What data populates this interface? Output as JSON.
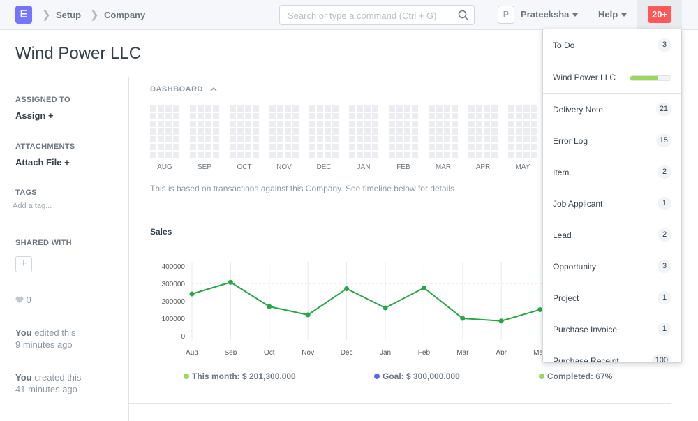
{
  "navbar": {
    "logo_letter": "E",
    "breadcrumbs": [
      "Setup",
      "Company"
    ],
    "search_placeholder": "Search or type a command (Ctrl + G)",
    "avatar_letter": "P",
    "user_name": "Prateeksha",
    "help_label": "Help",
    "notification_count": "20+"
  },
  "page": {
    "title": "Wind Power LLC"
  },
  "sidebar": {
    "assigned_to_label": "ASSIGNED TO",
    "assign_action": "Assign +",
    "attachments_label": "ATTACHMENTS",
    "attach_action": "Attach File +",
    "tags_label": "TAGS",
    "tag_placeholder": "Add a tag...",
    "shared_with_label": "SHARED WITH",
    "share_add": "+",
    "like_count": "0",
    "activity": [
      {
        "user": "You",
        "action": " edited this",
        "time": "9 minutes ago"
      },
      {
        "user": "You",
        "action": " created this",
        "time": "41 minutes ago"
      }
    ]
  },
  "dashboard": {
    "label": "DASHBOARD",
    "heatmap_months": [
      "AUG",
      "SEP",
      "OCT",
      "NOV",
      "DEC",
      "JAN",
      "FEB",
      "MAR",
      "APR",
      "MAY"
    ],
    "note": "This is based on transactions against this Company. See timeline below for details",
    "sales_title": "Sales",
    "summary": [
      {
        "label": "This month: $ 201,300.000",
        "color": "#98d85b"
      },
      {
        "label": "Goal: $ 300,000.000",
        "color": "#5e64ff"
      },
      {
        "label": "Completed: 67%",
        "color": "#98d85b"
      }
    ]
  },
  "chart_data": {
    "type": "line",
    "title": "Sales",
    "categories": [
      "Aug",
      "Sep",
      "Oct",
      "Nov",
      "Dec",
      "Jan",
      "Feb",
      "Mar",
      "Apr",
      "May"
    ],
    "series": [
      {
        "values": [
          240000,
          307000,
          168000,
          120000,
          270000,
          160000,
          275000,
          100000,
          85000,
          150000
        ],
        "color": "#28a745"
      }
    ],
    "y_ticks": [
      "400000",
      "300000",
      "200000",
      "100000",
      "0"
    ],
    "ylim": [
      0,
      400000
    ],
    "goal_line": 300000
  },
  "dropdown": {
    "items": [
      {
        "label": "To Do",
        "count": "3"
      },
      {
        "label": "Wind Power LLC",
        "progress": 0.67
      },
      {
        "label": "Delivery Note",
        "count": "21"
      },
      {
        "label": "Error Log",
        "count": "15"
      },
      {
        "label": "Item",
        "count": "2"
      },
      {
        "label": "Job Applicant",
        "count": "1"
      },
      {
        "label": "Lead",
        "count": "2"
      },
      {
        "label": "Opportunity",
        "count": "3"
      },
      {
        "label": "Project",
        "count": "1"
      },
      {
        "label": "Purchase Invoice",
        "count": "1"
      },
      {
        "label": "Purchase Receipt",
        "count": "100"
      }
    ]
  }
}
